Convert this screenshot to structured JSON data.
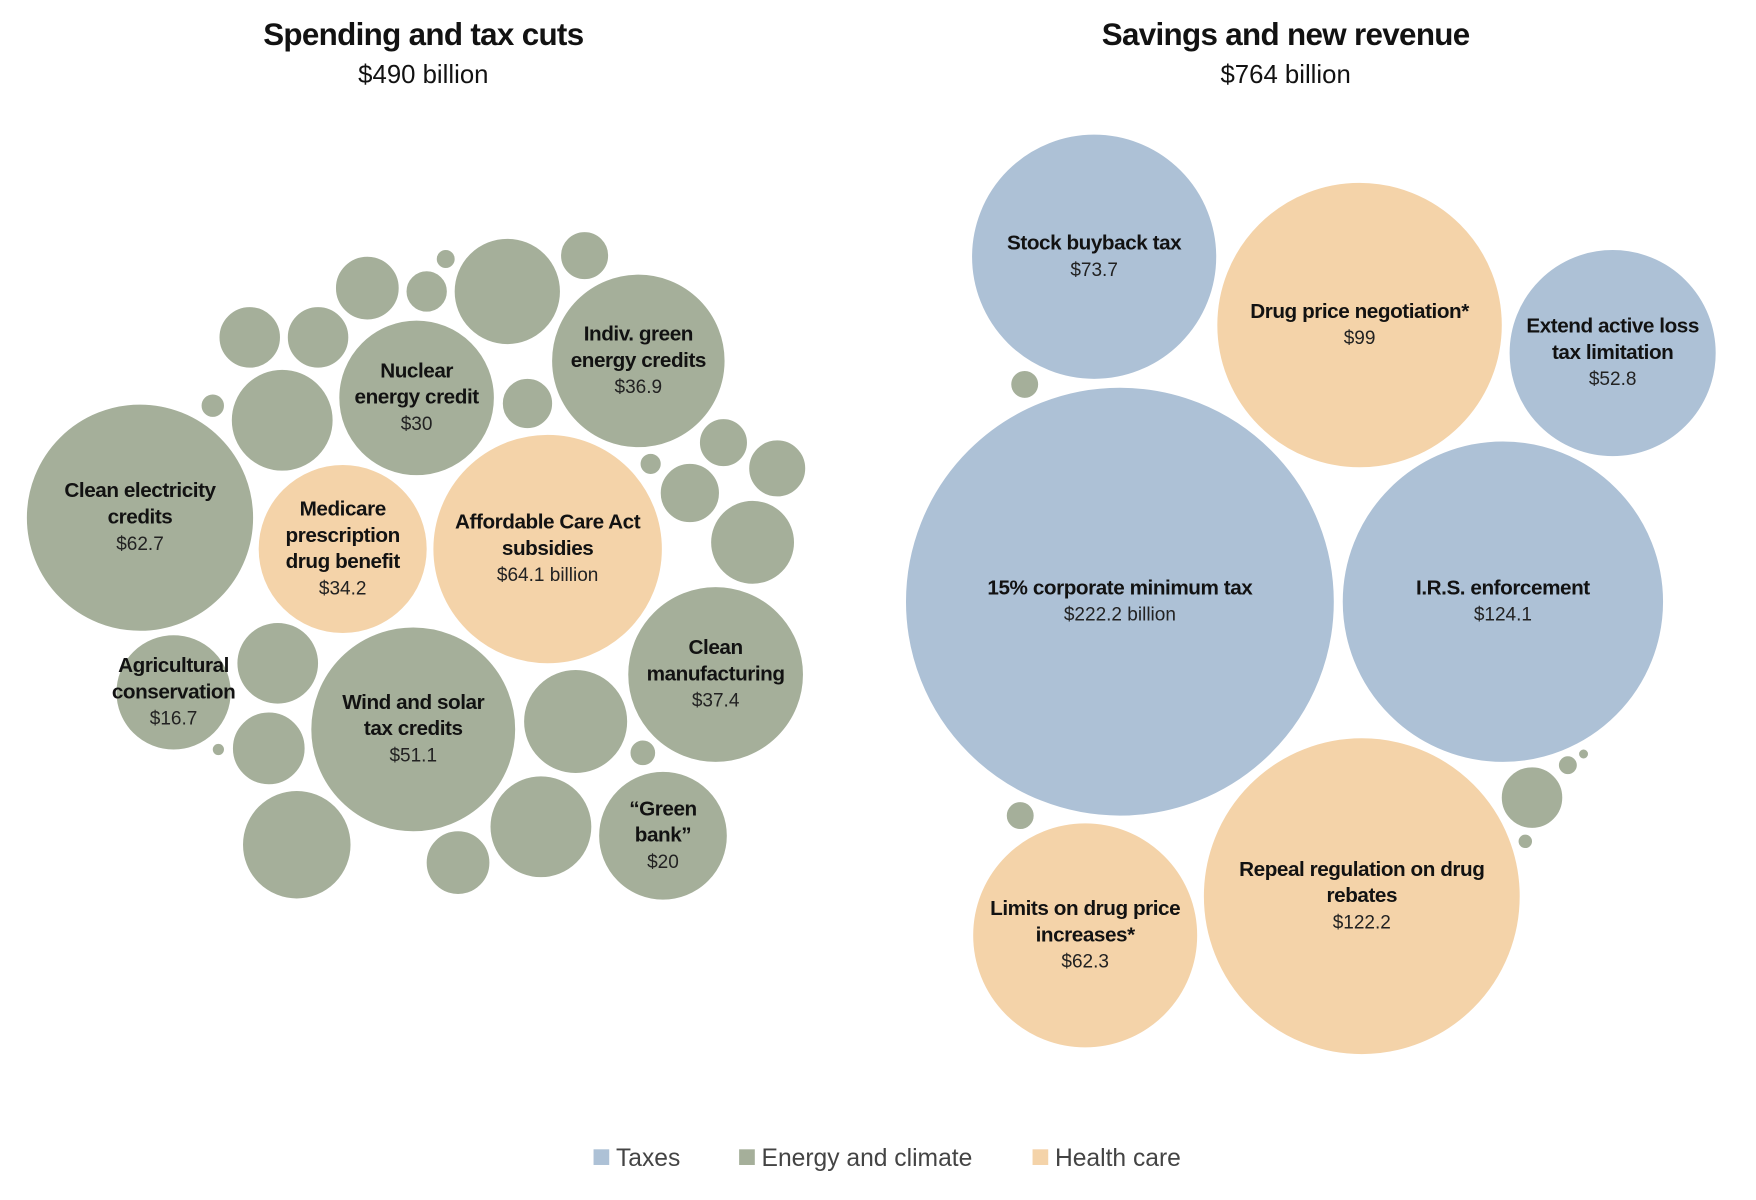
{
  "chart_data": {
    "type": "bubble",
    "colors": {
      "Taxes": "#adc1d6",
      "Energy and climate": "#a5af9a",
      "Health care": "#f4d3a9"
    },
    "legend": {
      "placement": "bottom-center",
      "entries": [
        "Taxes",
        "Energy and climate",
        "Health care"
      ]
    },
    "charts": [
      {
        "title": "Spending and tax cuts",
        "subtitle": "$490 billion",
        "unit": "billion USD",
        "bubbles": [
          {
            "label": [
              "Clean electricity",
              "credits"
            ],
            "value_label": "$62.7",
            "value": 62.7,
            "category": "Energy and climate"
          },
          {
            "label": [
              "Medicare",
              "prescription",
              "drug benefit"
            ],
            "value_label": "$34.2",
            "value": 34.2,
            "category": "Health care"
          },
          {
            "label": [
              "Affordable Care Act",
              "subsidies"
            ],
            "value_label": "$64.1 billion",
            "value": 64.1,
            "category": "Health care"
          },
          {
            "label": [
              "Nuclear",
              "energy credit"
            ],
            "value_label": "$30",
            "value": 30,
            "category": "Energy and climate"
          },
          {
            "label": [
              "Indiv. green",
              "energy credits"
            ],
            "value_label": "$36.9",
            "value": 36.9,
            "category": "Energy and climate"
          },
          {
            "label": [
              "Agricultural",
              "conservation"
            ],
            "value_label": "$16.7",
            "value": 16.7,
            "category": "Energy and climate"
          },
          {
            "label": [
              "Wind and solar",
              "tax credits"
            ],
            "value_label": "$51.1",
            "value": 51.1,
            "category": "Energy and climate"
          },
          {
            "label": [
              "Clean",
              "manufacturing"
            ],
            "value_label": "$37.4",
            "value": 37.4,
            "category": "Energy and climate"
          },
          {
            "label": [
              "“Green",
              "bank”"
            ],
            "value_label": "$20",
            "value": 20,
            "category": "Energy and climate"
          }
        ],
        "unlabeled_bubbles": {
          "category": "Energy and climate",
          "approx_values": [
            4.8,
            4.8,
            5.1,
            2.2,
            0.5,
            14,
            3,
            12.8,
            0.7,
            3.2,
            3,
            4,
            0.6,
            4.4,
            8.7,
            8.3,
            6,
            0.2,
            14.5,
            13.3,
            0.9,
            12.8,
            5.1
          ]
        }
      },
      {
        "title": "Savings and new revenue",
        "subtitle": "$764 billion",
        "unit": "billion USD",
        "bubbles": [
          {
            "label": [
              "Stock buyback tax"
            ],
            "value_label": "$73.7",
            "value": 73.7,
            "category": "Taxes"
          },
          {
            "label": [
              "Drug price negotiation*"
            ],
            "value_label": "$99",
            "value": 99,
            "category": "Health care"
          },
          {
            "label": [
              "Extend active loss",
              "tax limitation"
            ],
            "value_label": "$52.8",
            "value": 52.8,
            "category": "Taxes"
          },
          {
            "label": [
              "15% corporate minimum tax"
            ],
            "value_label": "$222.2 billion",
            "value": 222.2,
            "category": "Taxes"
          },
          {
            "label": [
              "I.R.S. enforcement"
            ],
            "value_label": "$124.1",
            "value": 124.1,
            "category": "Taxes"
          },
          {
            "label": [
              "Limits on drug price",
              "increases*"
            ],
            "value_label": "$62.3",
            "value": 62.3,
            "category": "Health care"
          },
          {
            "label": [
              "Repeal regulation on drug",
              "rebates"
            ],
            "value_label": "$122.2",
            "value": 122.2,
            "category": "Health care"
          }
        ],
        "unlabeled_bubbles": {
          "category": "Energy and climate",
          "approx_values": [
            1,
            1,
            4.7,
            0.5,
            0.2,
            0.3
          ]
        }
      }
    ]
  }
}
